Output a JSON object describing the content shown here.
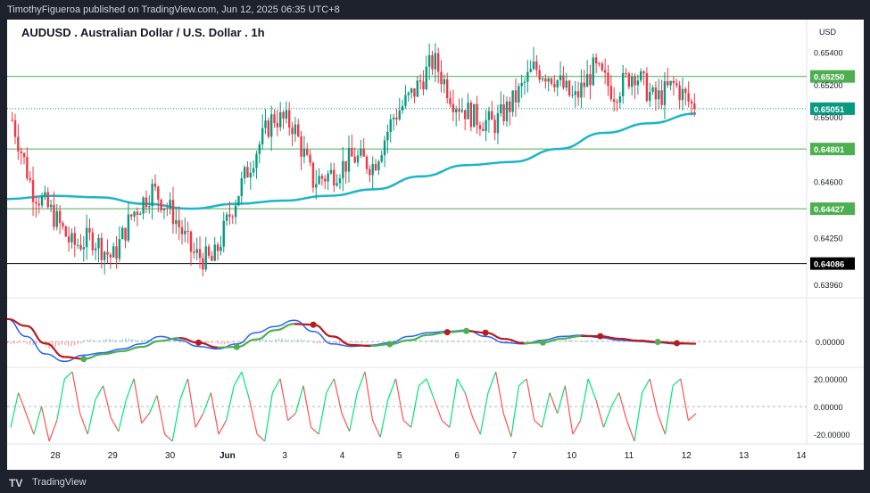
{
  "header": {
    "publisher": "TimothyFigueroa published on TradingView.com, Jun 12, 2025 06:35 UTC+8"
  },
  "footer": {
    "logo": "TV",
    "brand": "TradingView"
  },
  "chart_data": {
    "type": "candlestick",
    "title": "AUDUSD . Australian Dollar / U.S. Dollar . 1h",
    "currency": "USD",
    "price_axis": {
      "range": [
        0.639,
        0.6558
      ],
      "ticks": [
        {
          "value": 0.654,
          "label": "0.65400"
        },
        {
          "value": 0.652,
          "label": "0.65200"
        },
        {
          "value": 0.65,
          "label": "0.65000"
        },
        {
          "value": 0.646,
          "label": "0.64600"
        },
        {
          "value": 0.6425,
          "label": "0.64250"
        },
        {
          "value": 0.6396,
          "label": "0.63960"
        }
      ]
    },
    "levels": [
      {
        "value": 0.6525,
        "label": "0.65250",
        "color": "#4caf50",
        "style": "solid"
      },
      {
        "value": 0.648,
        "label": "0.64801",
        "color": "#4caf50",
        "style": "solid"
      },
      {
        "value": 0.6443,
        "label": "0.64427",
        "color": "#4caf50",
        "style": "solid"
      },
      {
        "value": 0.6409,
        "label": "0.64086",
        "color": "#000000",
        "style": "solid"
      }
    ],
    "last_price": {
      "value": 0.6505,
      "label": "0.65051",
      "color": "#089981"
    },
    "candle_colors": {
      "up": "#089981",
      "down": "#f23645"
    },
    "ma_color": "#1cb5c7",
    "moving_average": [
      0.6449,
      0.6451,
      0.645,
      0.6446,
      0.6443,
      0.6446,
      0.6448,
      0.6451,
      0.6455,
      0.6463,
      0.647,
      0.6472,
      0.648,
      0.649,
      0.6496,
      0.6502
    ],
    "price_path": [
      0.6498,
      0.6455,
      0.644,
      0.642,
      0.6425,
      0.6412,
      0.644,
      0.6455,
      0.644,
      0.6415,
      0.641,
      0.6445,
      0.6475,
      0.65,
      0.6495,
      0.646,
      0.6465,
      0.6475,
      0.647,
      0.65,
      0.6515,
      0.6535,
      0.651,
      0.65,
      0.6495,
      0.651,
      0.653,
      0.6525,
      0.651,
      0.653,
      0.6515,
      0.6528,
      0.651,
      0.652,
      0.6505
    ],
    "oscillator1": {
      "zero_label": "0.00000",
      "fast_color": "#2962ff",
      "slow_color": "#4caf50",
      "slow_color_down": "#b71c1c",
      "fast": [
        0.9,
        0.2,
        -0.5,
        -0.8,
        -0.55,
        -0.45,
        -0.3,
        -0.1,
        0.2,
        0.05,
        -0.2,
        -0.3,
        -0.1,
        0.35,
        0.6,
        0.85,
        0.4,
        -0.1,
        -0.2,
        -0.15,
        -0.05,
        0.2,
        0.35,
        0.4,
        0.45,
        0.2,
        -0.05,
        -0.1,
        0.05,
        0.2,
        0.25,
        0.15,
        0.05,
        0.0,
        -0.05,
        -0.1,
        -0.08
      ],
      "histogram": [
        -0.1,
        -0.15,
        -0.3,
        -0.2,
        0.08,
        0.1,
        0.12,
        0.08,
        0.05,
        -0.05,
        -0.1,
        -0.12,
        -0.06,
        0.1,
        0.12,
        0.08,
        -0.08,
        -0.1,
        -0.06,
        -0.02,
        0.04,
        0.08,
        0.06,
        0.04,
        0.02,
        -0.03,
        -0.06,
        -0.04,
        0.03,
        0.06,
        0.04,
        0.02,
        -0.01,
        -0.02,
        -0.02,
        -0.03,
        -0.02
      ],
      "crosses": [
        {
          "idx": 4,
          "dir": "up"
        },
        {
          "idx": 10,
          "dir": "down"
        },
        {
          "idx": 12,
          "dir": "up"
        },
        {
          "idx": 16,
          "dir": "down"
        },
        {
          "idx": 20,
          "dir": "up"
        },
        {
          "idx": 23,
          "dir": "down"
        },
        {
          "idx": 24,
          "dir": "up"
        },
        {
          "idx": 25,
          "dir": "down"
        },
        {
          "idx": 28,
          "dir": "up"
        },
        {
          "idx": 31,
          "dir": "down"
        },
        {
          "idx": 34,
          "dir": "up"
        },
        {
          "idx": 35,
          "dir": "down"
        }
      ]
    },
    "oscillator2": {
      "tick_labels": [
        "20.00000",
        "0.00000",
        "-20.00000"
      ],
      "tick_values": [
        20,
        0,
        -20
      ],
      "up_color": "#00e676",
      "down_color": "#ff5252",
      "values": [
        -15,
        10,
        -5,
        -20,
        0,
        -25,
        -10,
        20,
        25,
        -5,
        -20,
        5,
        15,
        -8,
        -18,
        5,
        20,
        -12,
        -5,
        8,
        -20,
        -25,
        5,
        20,
        -15,
        -5,
        10,
        -20,
        -10,
        15,
        25,
        5,
        -20,
        -25,
        10,
        20,
        -10,
        -5,
        15,
        -15,
        -20,
        10,
        20,
        -5,
        -18,
        10,
        25,
        -10,
        -22,
        5,
        20,
        -10,
        -15,
        15,
        20,
        5,
        -10,
        -15,
        20,
        10,
        -8,
        -20,
        10,
        25,
        -5,
        -22,
        15,
        20,
        -10,
        -15,
        10,
        -5,
        15,
        -20,
        -10,
        20,
        5,
        -15,
        0,
        10,
        -10,
        -25,
        10,
        20,
        -5,
        -20,
        15,
        20,
        -10,
        -5
      ],
      "range": [
        -27,
        27
      ]
    },
    "x_axis": [
      "28",
      "29",
      "30",
      "Jun",
      "3",
      "4",
      "5",
      "6",
      "7",
      "10",
      "11",
      "12",
      "13",
      "14"
    ]
  }
}
